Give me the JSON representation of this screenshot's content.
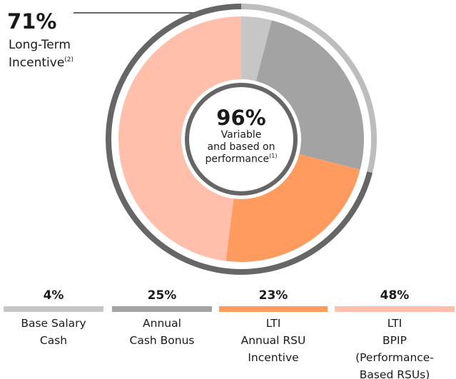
{
  "chart_data": {
    "type": "pie",
    "categories": [
      [
        "Base Salary",
        "Cash"
      ],
      [
        "Annual",
        "Cash Bonus"
      ],
      [
        "LTI",
        "Annual RSU",
        "Incentive"
      ],
      [
        "LTI",
        "BPIP",
        "(Performance-",
        "Based RSUs)"
      ]
    ],
    "values": [
      4,
      25,
      23,
      48
    ],
    "value_labels": [
      "4%",
      "25%",
      "23%",
      "48%"
    ],
    "colors": [
      "#c6c6c6",
      "#a3a3a3",
      "#ff9b5e",
      "#ffbfab"
    ],
    "center": {
      "label": "96%",
      "text": [
        "Variable",
        "and based on",
        "performance"
      ],
      "note": "(1)"
    },
    "callout": {
      "value": 71,
      "label": "71%",
      "text": [
        "Long-Term",
        "Incentive"
      ],
      "note": "(2)",
      "color": "#666666",
      "rest_color": "#bdbdbd"
    }
  }
}
